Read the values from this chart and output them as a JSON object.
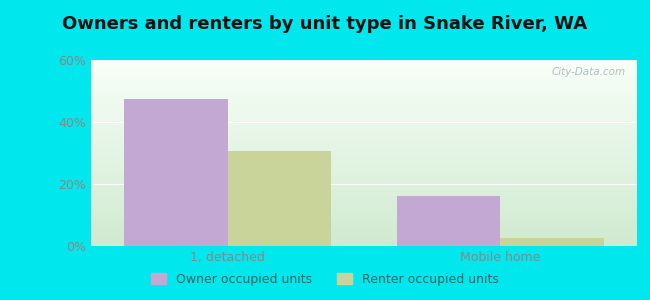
{
  "title": "Owners and renters by unit type in Snake River, WA",
  "categories": [
    "1, detached",
    "Mobile home"
  ],
  "owner_values": [
    47.5,
    16.0
  ],
  "renter_values": [
    30.5,
    2.5
  ],
  "owner_color": "#c4a8d4",
  "renter_color": "#c8d49a",
  "bar_width": 0.38,
  "ylim": [
    0,
    60
  ],
  "yticks": [
    0,
    20,
    40,
    60
  ],
  "ytick_labels": [
    "0%",
    "20%",
    "40%",
    "60%"
  ],
  "legend_owner": "Owner occupied units",
  "legend_renter": "Renter occupied units",
  "outer_bg": "#00e8ee",
  "plot_bg_topleft": "#e8f5e0",
  "plot_bg_topright": "#f8fffa",
  "plot_bg_bottom": "#e0f5d8",
  "title_fontsize": 13,
  "watermark": "City-Data.com",
  "tick_color": "#888888",
  "label_color": "#888888"
}
